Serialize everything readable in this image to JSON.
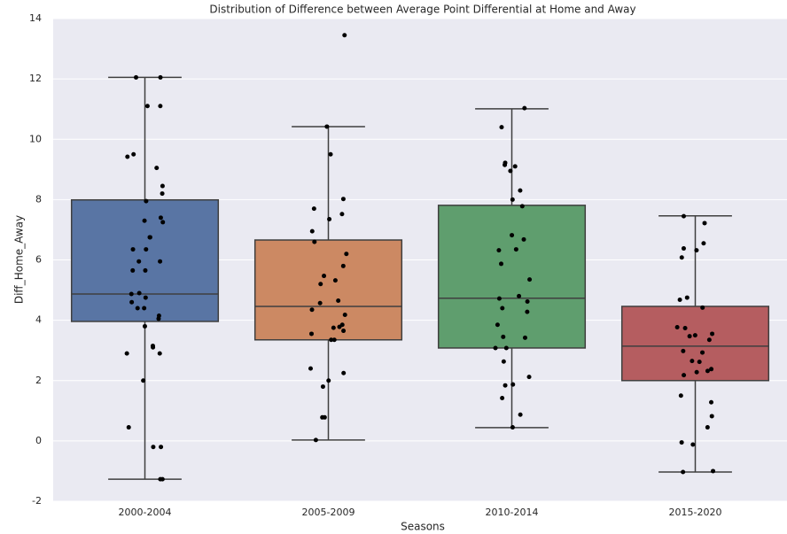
{
  "chart_data": {
    "type": "box",
    "title": "Distribution of Difference between Average Point Differential at Home and Away",
    "x_label": "Seasons",
    "y_label": "Diff_Home_Away",
    "categories": [
      "2000-2004",
      "2005-2009",
      "2010-2014",
      "2015-2020"
    ],
    "ylim": [
      -2,
      14
    ],
    "yticks": [
      -2,
      0,
      2,
      4,
      6,
      8,
      10,
      12,
      14
    ],
    "grid": true,
    "boxes": [
      {
        "color": "#5975a4",
        "whislo": -1.27,
        "q1": 3.96,
        "med": 4.87,
        "q3": 7.99,
        "whishi": 12.05,
        "points": [
          12.05,
          12.05,
          11.1,
          11.1,
          9.5,
          9.42,
          9.05,
          8.45,
          8.2,
          7.95,
          7.4,
          7.3,
          7.25,
          6.75,
          6.75,
          6.35,
          6.35,
          5.95,
          5.95,
          5.65,
          5.65,
          4.9,
          4.87,
          4.75,
          4.6,
          4.4,
          4.4,
          4.15,
          4.05,
          3.8,
          3.15,
          3.1,
          2.9,
          2.9,
          2.0,
          0.45,
          -0.2,
          -0.2,
          -1.27,
          -1.27
        ]
      },
      {
        "color": "#cc8963",
        "whislo": 0.03,
        "q1": 3.35,
        "med": 4.46,
        "q3": 6.66,
        "whishi": 10.42,
        "points": [
          13.45,
          10.42,
          9.5,
          8.02,
          7.7,
          7.52,
          7.35,
          6.95,
          6.6,
          6.2,
          5.8,
          5.47,
          5.32,
          5.2,
          4.65,
          4.57,
          4.35,
          4.18,
          3.85,
          3.78,
          3.75,
          3.65,
          3.55,
          3.35,
          3.35,
          2.4,
          2.25,
          2.0,
          1.8,
          0.78,
          0.78,
          0.03
        ]
      },
      {
        "color": "#5f9e6e",
        "whislo": 0.44,
        "q1": 3.08,
        "med": 4.73,
        "q3": 7.81,
        "whishi": 11.01,
        "points": [
          11.03,
          10.4,
          9.22,
          9.15,
          9.1,
          8.95,
          8.3,
          8.0,
          7.78,
          6.82,
          6.68,
          6.35,
          6.32,
          5.87,
          5.35,
          4.8,
          4.72,
          4.62,
          4.4,
          4.28,
          3.85,
          3.45,
          3.42,
          3.08,
          3.08,
          2.63,
          2.12,
          1.87,
          1.84,
          1.42,
          0.87,
          0.45
        ]
      },
      {
        "color": "#b55d60",
        "whislo": -1.03,
        "q1": 2.0,
        "med": 3.14,
        "q3": 4.46,
        "whishi": 7.46,
        "points": [
          7.45,
          7.22,
          6.55,
          6.38,
          6.32,
          6.08,
          4.75,
          4.68,
          4.42,
          3.77,
          3.74,
          3.55,
          3.5,
          3.47,
          3.35,
          2.98,
          2.93,
          2.65,
          2.62,
          2.38,
          2.32,
          2.28,
          2.18,
          1.5,
          1.28,
          0.82,
          0.45,
          -0.05,
          -0.12,
          -1.0,
          -1.03
        ]
      }
    ]
  }
}
